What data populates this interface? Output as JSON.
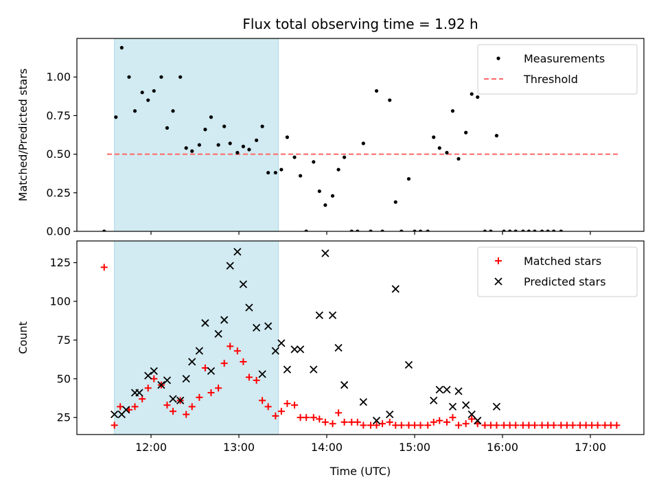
{
  "chart_data": {
    "type": "scatter",
    "title": "Flux total observing time = 1.92 h",
    "xlabel": "Time (UTC)",
    "x_ticks": [
      "12:00",
      "13:00",
      "14:00",
      "15:00",
      "16:00",
      "17:00"
    ],
    "shaded_interval": [
      "11:35",
      "13:27"
    ],
    "shade_color": "#add8e6",
    "panels": [
      {
        "ylabel": "Matched/Predicted stars",
        "ylim": [
          0,
          1.25
        ],
        "y_ticks": [
          "0.00",
          "0.25",
          "0.50",
          "0.75",
          "1.00"
        ],
        "legend_position": "top-right",
        "threshold": {
          "name": "Threshold",
          "value": 0.5,
          "x_range": [
            "11:30",
            "17:20"
          ],
          "color": "#ff6666"
        },
        "series": [
          {
            "name": "Measurements",
            "marker": "dot",
            "color": "#000000",
            "points": [
              [
                "11:28",
                0.0
              ],
              [
                "11:36",
                0.74
              ],
              [
                "11:40",
                1.19
              ],
              [
                "11:45",
                1.0
              ],
              [
                "11:49",
                0.78
              ],
              [
                "11:54",
                0.9
              ],
              [
                "11:58",
                0.85
              ],
              [
                "12:02",
                0.91
              ],
              [
                "12:07",
                1.0
              ],
              [
                "12:11",
                0.67
              ],
              [
                "12:15",
                0.78
              ],
              [
                "12:20",
                1.0
              ],
              [
                "12:24",
                0.54
              ],
              [
                "12:28",
                0.52
              ],
              [
                "12:33",
                0.56
              ],
              [
                "12:37",
                0.66
              ],
              [
                "12:41",
                0.74
              ],
              [
                "12:46",
                0.56
              ],
              [
                "12:50",
                0.68
              ],
              [
                "12:54",
                0.57
              ],
              [
                "12:59",
                0.51
              ],
              [
                "13:03",
                0.55
              ],
              [
                "13:07",
                0.53
              ],
              [
                "13:12",
                0.59
              ],
              [
                "13:16",
                0.68
              ],
              [
                "13:20",
                0.38
              ],
              [
                "13:25",
                0.38
              ],
              [
                "13:29",
                0.4
              ],
              [
                "13:33",
                0.61
              ],
              [
                "13:38",
                0.48
              ],
              [
                "13:42",
                0.36
              ],
              [
                "13:46",
                0.0
              ],
              [
                "13:51",
                0.45
              ],
              [
                "13:55",
                0.26
              ],
              [
                "13:59",
                0.17
              ],
              [
                "14:04",
                0.23
              ],
              [
                "14:08",
                0.4
              ],
              [
                "14:12",
                0.48
              ],
              [
                "14:17",
                0.0
              ],
              [
                "14:21",
                0.0
              ],
              [
                "14:25",
                0.57
              ],
              [
                "14:30",
                0.0
              ],
              [
                "14:34",
                0.91
              ],
              [
                "14:38",
                0.0
              ],
              [
                "14:43",
                0.85
              ],
              [
                "14:47",
                0.19
              ],
              [
                "14:51",
                0.0
              ],
              [
                "14:56",
                0.34
              ],
              [
                "15:00",
                0.0
              ],
              [
                "15:04",
                0.0
              ],
              [
                "15:09",
                0.0
              ],
              [
                "15:13",
                0.61
              ],
              [
                "15:17",
                0.54
              ],
              [
                "15:22",
                0.51
              ],
              [
                "15:26",
                0.78
              ],
              [
                "15:30",
                0.47
              ],
              [
                "15:35",
                0.64
              ],
              [
                "15:39",
                0.89
              ],
              [
                "15:43",
                0.87
              ],
              [
                "15:48",
                0.0
              ],
              [
                "15:52",
                0.0
              ],
              [
                "15:56",
                0.62
              ],
              [
                "16:01",
                0.0
              ],
              [
                "16:05",
                0.0
              ],
              [
                "16:09",
                0.0
              ],
              [
                "16:14",
                0.0
              ],
              [
                "16:18",
                0.0
              ],
              [
                "16:22",
                0.0
              ],
              [
                "16:27",
                0.0
              ],
              [
                "16:31",
                0.0
              ],
              [
                "16:35",
                0.0
              ],
              [
                "16:40",
                0.0
              ]
            ]
          }
        ]
      },
      {
        "ylabel": "Count",
        "ylim": [
          14,
          139
        ],
        "y_ticks": [
          "25",
          "50",
          "75",
          "100",
          "125"
        ],
        "legend_position": "top-right",
        "series": [
          {
            "name": "Matched stars",
            "marker": "plus",
            "color": "#ff0000",
            "points": [
              [
                "11:28",
                122
              ],
              [
                "11:35",
                20
              ],
              [
                "11:39",
                32
              ],
              [
                "11:45",
                30
              ],
              [
                "11:49",
                32
              ],
              [
                "11:54",
                37
              ],
              [
                "11:58",
                44
              ],
              [
                "12:02",
                50
              ],
              [
                "12:07",
                46
              ],
              [
                "12:11",
                33
              ],
              [
                "12:15",
                29
              ],
              [
                "12:20",
                36
              ],
              [
                "12:24",
                27
              ],
              [
                "12:28",
                32
              ],
              [
                "12:33",
                38
              ],
              [
                "12:37",
                57
              ],
              [
                "12:41",
                41
              ],
              [
                "12:46",
                44
              ],
              [
                "12:50",
                60
              ],
              [
                "12:54",
                71
              ],
              [
                "12:59",
                68
              ],
              [
                "13:03",
                61
              ],
              [
                "13:07",
                51
              ],
              [
                "13:12",
                49
              ],
              [
                "13:16",
                36
              ],
              [
                "13:20",
                32
              ],
              [
                "13:25",
                26
              ],
              [
                "13:29",
                29
              ],
              [
                "13:33",
                34
              ],
              [
                "13:38",
                33
              ],
              [
                "13:42",
                25
              ],
              [
                "13:46",
                25
              ],
              [
                "13:51",
                25
              ],
              [
                "13:55",
                24
              ],
              [
                "13:59",
                22
              ],
              [
                "14:04",
                21
              ],
              [
                "14:08",
                28
              ],
              [
                "14:12",
                22
              ],
              [
                "14:17",
                22
              ],
              [
                "14:21",
                22
              ],
              [
                "14:25",
                20
              ],
              [
                "14:30",
                20
              ],
              [
                "14:34",
                20
              ],
              [
                "14:38",
                21
              ],
              [
                "14:43",
                22
              ],
              [
                "14:47",
                20
              ],
              [
                "14:51",
                20
              ],
              [
                "14:56",
                20
              ],
              [
                "15:00",
                20
              ],
              [
                "15:04",
                20
              ],
              [
                "15:09",
                20
              ],
              [
                "15:13",
                22
              ],
              [
                "15:17",
                23
              ],
              [
                "15:22",
                22
              ],
              [
                "15:26",
                25
              ],
              [
                "15:30",
                20
              ],
              [
                "15:35",
                21
              ],
              [
                "15:39",
                24
              ],
              [
                "15:43",
                21
              ],
              [
                "15:48",
                20
              ],
              [
                "15:52",
                20
              ],
              [
                "15:56",
                20
              ],
              [
                "16:01",
                20
              ],
              [
                "16:05",
                20
              ],
              [
                "16:09",
                20
              ],
              [
                "16:14",
                20
              ],
              [
                "16:18",
                20
              ],
              [
                "16:22",
                20
              ],
              [
                "16:27",
                20
              ],
              [
                "16:31",
                20
              ],
              [
                "16:35",
                20
              ],
              [
                "16:40",
                20
              ],
              [
                "16:44",
                20
              ],
              [
                "16:48",
                20
              ],
              [
                "16:53",
                20
              ],
              [
                "16:57",
                20
              ],
              [
                "17:01",
                20
              ],
              [
                "17:05",
                20
              ],
              [
                "17:10",
                20
              ],
              [
                "17:14",
                20
              ],
              [
                "17:18",
                20
              ]
            ]
          },
          {
            "name": "Predicted stars",
            "marker": "x",
            "color": "#000000",
            "points": [
              [
                "11:35",
                27
              ],
              [
                "11:40",
                27
              ],
              [
                "11:43",
                30
              ],
              [
                "11:49",
                41
              ],
              [
                "11:52",
                41
              ],
              [
                "11:58",
                52
              ],
              [
                "12:02",
                55
              ],
              [
                "12:07",
                46
              ],
              [
                "12:11",
                49
              ],
              [
                "12:15",
                37
              ],
              [
                "12:20",
                36
              ],
              [
                "12:24",
                50
              ],
              [
                "12:28",
                61
              ],
              [
                "12:33",
                68
              ],
              [
                "12:37",
                86
              ],
              [
                "12:41",
                55
              ],
              [
                "12:46",
                79
              ],
              [
                "12:50",
                88
              ],
              [
                "12:54",
                123
              ],
              [
                "12:59",
                132
              ],
              [
                "13:03",
                111
              ],
              [
                "13:07",
                96
              ],
              [
                "13:12",
                83
              ],
              [
                "13:16",
                53
              ],
              [
                "13:20",
                84
              ],
              [
                "13:25",
                68
              ],
              [
                "13:29",
                73
              ],
              [
                "13:33",
                56
              ],
              [
                "13:38",
                69
              ],
              [
                "13:42",
                69
              ],
              [
                "13:51",
                56
              ],
              [
                "13:55",
                91
              ],
              [
                "13:59",
                131
              ],
              [
                "14:04",
                91
              ],
              [
                "14:08",
                70
              ],
              [
                "14:12",
                46
              ],
              [
                "14:25",
                35
              ],
              [
                "14:34",
                23
              ],
              [
                "14:43",
                27
              ],
              [
                "14:47",
                108
              ],
              [
                "14:56",
                59
              ],
              [
                "15:13",
                36
              ],
              [
                "15:17",
                43
              ],
              [
                "15:22",
                43
              ],
              [
                "15:26",
                32
              ],
              [
                "15:30",
                42
              ],
              [
                "15:35",
                33
              ],
              [
                "15:39",
                27
              ],
              [
                "15:43",
                23
              ],
              [
                "15:56",
                32
              ]
            ]
          }
        ]
      }
    ]
  }
}
